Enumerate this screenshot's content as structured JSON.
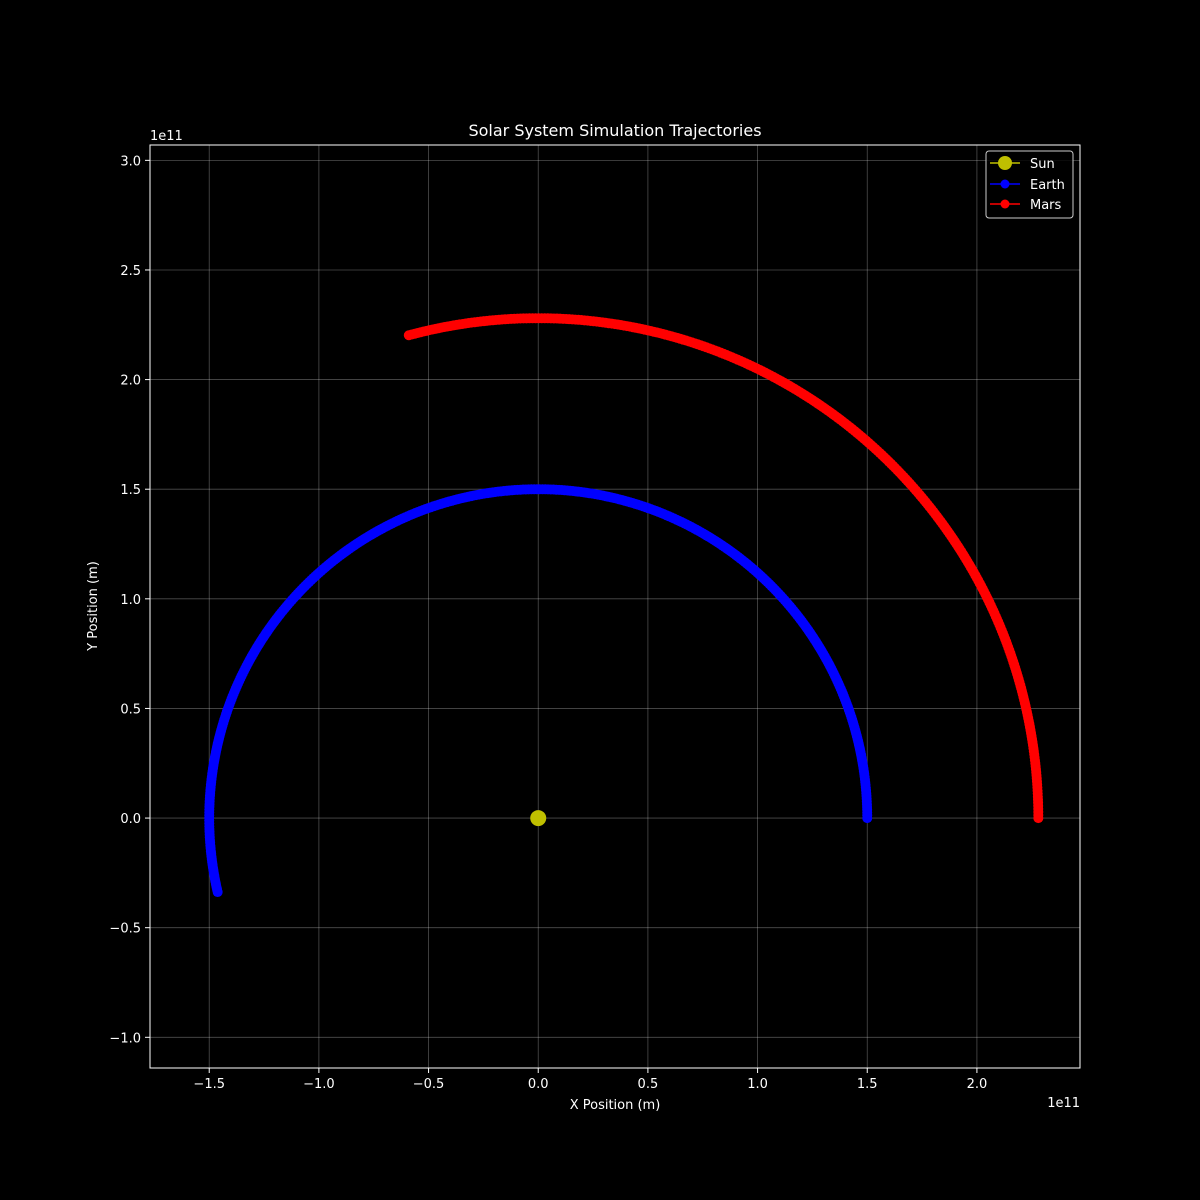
{
  "chart_data": {
    "type": "line",
    "title": "Solar System Simulation Trajectories",
    "xlabel": "X Position (m)",
    "ylabel": "Y Position (m)",
    "x_offset_label": "1e11",
    "y_offset_label": "1e11",
    "xlim": [
      -177000000000.0,
      247000000000.0
    ],
    "ylim": [
      -114000000000.0,
      307000000000.0
    ],
    "x_ticks": [
      -150000000000.0,
      -100000000000.0,
      -50000000000.0,
      0,
      50000000000.0,
      100000000000.0,
      150000000000.0,
      200000000000.0
    ],
    "x_tick_labels": [
      "−1.5",
      "−1.0",
      "−0.5",
      "0.0",
      "0.5",
      "1.0",
      "1.5",
      "2.0"
    ],
    "y_ticks": [
      -100000000000.0,
      -50000000000.0,
      0,
      50000000000.0,
      100000000000.0,
      150000000000.0,
      200000000000.0,
      250000000000.0,
      300000000000.0
    ],
    "y_tick_labels": [
      "−1.0",
      "−0.5",
      "0.0",
      "0.5",
      "1.0",
      "1.5",
      "2.0",
      "2.5",
      "3.0"
    ],
    "grid": true,
    "legend_position": "top-right",
    "series": [
      {
        "name": "Sun",
        "color": "#bfbf00",
        "marker_size": 8,
        "points": [
          [
            0,
            0
          ]
        ]
      },
      {
        "name": "Earth",
        "color": "#0000ff",
        "marker_size": 5,
        "orbit": {
          "radius": 150000000000.0,
          "start_angle_deg": 0,
          "end_angle_deg": 193,
          "samples": 400
        }
      },
      {
        "name": "Mars",
        "color": "#ff0000",
        "marker_size": 5,
        "orbit": {
          "radius": 228000000000.0,
          "start_angle_deg": 0,
          "end_angle_deg": 105,
          "samples": 300
        }
      }
    ]
  }
}
